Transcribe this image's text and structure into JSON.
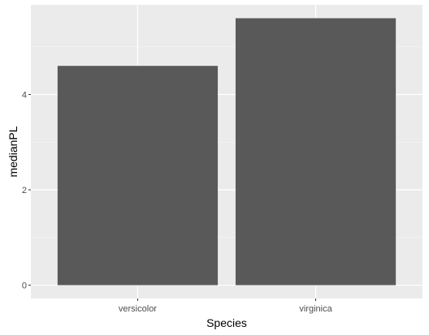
{
  "chart_data": {
    "type": "bar",
    "categories": [
      "versicolor",
      "virginica"
    ],
    "values": [
      4.6,
      5.6
    ],
    "xlabel": "Species",
    "ylabel": "medianPL",
    "ylim": [
      -0.28,
      5.88
    ],
    "yticks": [
      0,
      2,
      4
    ],
    "grid": true,
    "colors": {
      "bar": "#595959",
      "panel": "#ebebeb",
      "grid_major": "#ffffff",
      "grid_minor": "#f5f5f5",
      "tick": "#333333"
    }
  }
}
